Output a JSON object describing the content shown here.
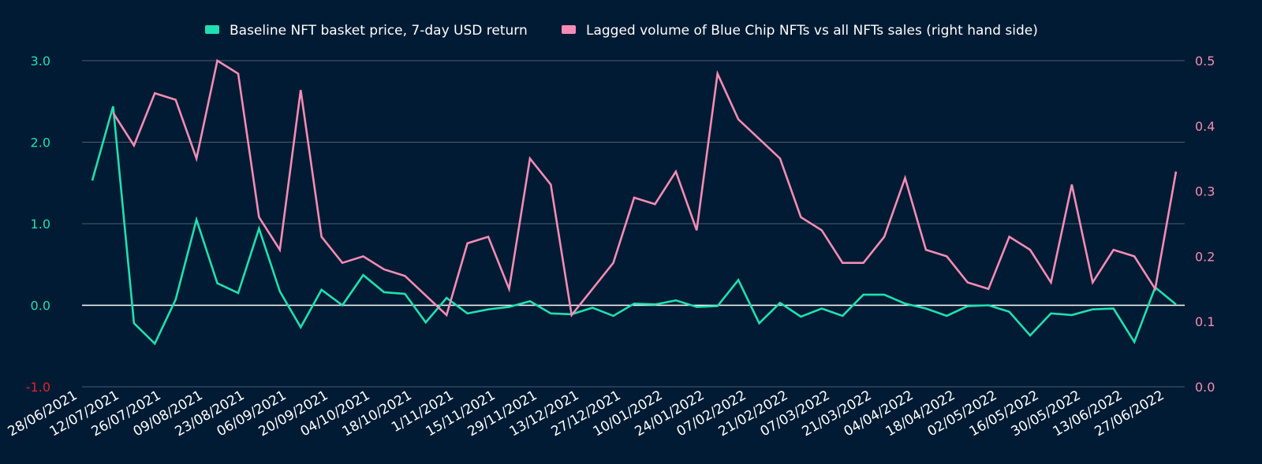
{
  "colors": {
    "background": "#001b33",
    "series_primary": "#1fe0b0",
    "series_secondary": "#f48cb5",
    "grid": "#4a5d70",
    "zero_line": "#ffffff",
    "left_axis_text": "#1fe0b0",
    "left_axis_negative_text": "#e0242b",
    "right_axis_text": "#f48cb5",
    "x_axis_text": "#ffffff"
  },
  "chart_data": {
    "type": "line",
    "title": "",
    "xlabel": "",
    "ylabel": "",
    "y2label": "",
    "grid": true,
    "legend_position": "top-center",
    "x_tick_labels": [
      "28/06/2021",
      "12/07/2021",
      "26/07/2021",
      "09/08/2021",
      "23/08/2021",
      "06/09/2021",
      "20/09/2021",
      "04/10/2021",
      "18/10/2021",
      "1/11/2021",
      "15/11/2021",
      "29/11/2021",
      "13/12/2021",
      "27/12/2021",
      "10/01/2022",
      "24/01/2022",
      "07/02/2022",
      "21/02/2022",
      "07/03/2022",
      "21/03/2022",
      "04/04/2022",
      "18/04/2022",
      "02/05/2022",
      "16/05/2022",
      "30/05/2022",
      "13/06/2022",
      "27/06/2022"
    ],
    "left_axis": {
      "ylim": [
        -1.0,
        3.0
      ],
      "ticks": [
        -1.0,
        0.0,
        1.0,
        2.0,
        3.0
      ],
      "tick_labels": [
        "-1.0",
        "0.0",
        "1.0",
        "2.0",
        "3.0"
      ]
    },
    "right_axis": {
      "ylim": [
        0.0,
        0.5
      ],
      "ticks": [
        0.0,
        0.1,
        0.2,
        0.3,
        0.4,
        0.5
      ],
      "tick_labels": [
        "0.0",
        "0.1",
        "0.2",
        "0.3",
        "0.4",
        "0.5"
      ]
    },
    "series": [
      {
        "name": "Baseline NFT basket price, 7-day USD return",
        "axis": "left",
        "color": "#1fe0b0",
        "values": [
          1.53,
          2.44,
          -0.22,
          -0.47,
          0.07,
          1.05,
          0.27,
          0.15,
          0.94,
          0.17,
          -0.27,
          0.19,
          0.0,
          0.37,
          0.16,
          0.14,
          -0.21,
          0.09,
          -0.1,
          -0.05,
          -0.02,
          0.05,
          -0.1,
          -0.11,
          -0.03,
          -0.13,
          0.02,
          0.01,
          0.06,
          -0.02,
          -0.01,
          0.31,
          -0.22,
          0.03,
          -0.14,
          -0.04,
          -0.13,
          0.13,
          0.13,
          0.02,
          -0.04,
          -0.13,
          -0.01,
          0.0,
          -0.08,
          -0.37,
          -0.1,
          -0.12,
          -0.05,
          -0.04,
          -0.45,
          0.22,
          0.01
        ]
      },
      {
        "name": "Lagged volume of Blue Chip NFTs vs all NFTs sales (right hand side)",
        "axis": "right",
        "color": "#f48cb5",
        "values": [
          null,
          0.42,
          0.37,
          0.45,
          0.44,
          0.35,
          0.5,
          0.48,
          0.26,
          0.21,
          0.455,
          0.23,
          0.19,
          0.2,
          0.18,
          0.17,
          0.14,
          0.11,
          0.22,
          0.23,
          0.15,
          0.35,
          0.31,
          0.11,
          0.15,
          0.19,
          0.29,
          0.28,
          0.33,
          0.24,
          0.48,
          0.41,
          0.38,
          0.35,
          0.26,
          0.24,
          0.19,
          0.19,
          0.23,
          0.32,
          0.21,
          0.2,
          0.16,
          0.15,
          0.23,
          0.21,
          0.16,
          0.31,
          0.16,
          0.21,
          0.2,
          0.15,
          0.33
        ]
      }
    ]
  }
}
